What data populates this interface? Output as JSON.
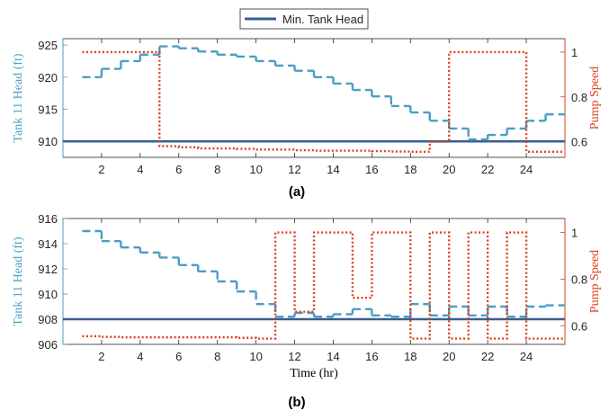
{
  "legend": {
    "label": "Min. Tank Head"
  },
  "colors": {
    "head": "#4a9ec4",
    "pump": "#d9401a",
    "min": "#3a5f8f",
    "axis": "#262626",
    "left_axis": "#4a9ec4",
    "right_axis": "#d9401a"
  },
  "shared": {
    "xlabel": "Time (hr)",
    "xlim": [
      0,
      26
    ],
    "xticks": [
      2,
      4,
      6,
      8,
      10,
      12,
      14,
      16,
      18,
      20,
      22,
      24
    ],
    "left_ylabel": "Tank 11 Head (ft)",
    "right_ylabel": "Pump Speed"
  },
  "chart_data": [
    {
      "type": "line",
      "caption": "(a)",
      "ylim": [
        907.5,
        926
      ],
      "yticks": [
        910,
        915,
        920,
        925
      ],
      "y2lim": [
        0.53,
        1.06
      ],
      "y2ticks": [
        0.6,
        0.8,
        1
      ],
      "y2ticklabels": [
        "0.6",
        "0.8",
        "1"
      ],
      "min_head": 910,
      "series": [
        {
          "name": "Tank 11 Head",
          "axis": "left",
          "style": "dashed-steps",
          "x": [
            1,
            2,
            3,
            4,
            5,
            6,
            7,
            8,
            9,
            10,
            11,
            12,
            13,
            14,
            15,
            16,
            17,
            18,
            19,
            20,
            21,
            22,
            23,
            24,
            25
          ],
          "y": [
            920.0,
            921.3,
            922.5,
            923.5,
            924.8,
            924.5,
            924.0,
            923.5,
            923.2,
            922.5,
            921.8,
            921.0,
            920.0,
            919.0,
            918.0,
            917.0,
            915.5,
            914.5,
            913.2,
            912.0,
            910.3,
            911.0,
            912.0,
            913.2,
            914.2
          ]
        },
        {
          "name": "Pump Speed",
          "axis": "right",
          "style": "dotted-steps",
          "x": [
            1,
            2,
            3,
            4,
            5,
            6,
            7,
            8,
            9,
            10,
            11,
            12,
            13,
            14,
            15,
            16,
            17,
            18,
            19,
            20,
            21,
            22,
            23,
            24,
            25
          ],
          "y": [
            1.0,
            1.0,
            1.0,
            1.0,
            0.58,
            0.575,
            0.57,
            0.57,
            0.568,
            0.565,
            0.565,
            0.562,
            0.56,
            0.56,
            0.56,
            0.558,
            0.556,
            0.555,
            0.6,
            1.0,
            1.0,
            1.0,
            1.0,
            0.555,
            0.555
          ]
        }
      ]
    },
    {
      "type": "line",
      "caption": "(b)",
      "ylim": [
        906,
        916
      ],
      "yticks": [
        906,
        908,
        910,
        912,
        914,
        916
      ],
      "y2lim": [
        0.52,
        1.06
      ],
      "y2ticks": [
        0.6,
        0.8,
        1
      ],
      "y2ticklabels": [
        "0.6",
        "0.8",
        "1"
      ],
      "min_head": 908,
      "series": [
        {
          "name": "Tank 11 Head",
          "axis": "left",
          "style": "dashed-steps",
          "x": [
            1,
            2,
            3,
            4,
            5,
            6,
            7,
            8,
            9,
            10,
            11,
            12,
            13,
            14,
            15,
            16,
            17,
            18,
            19,
            20,
            21,
            22,
            23,
            24,
            25
          ],
          "y": [
            915.0,
            914.2,
            913.7,
            913.3,
            912.9,
            912.3,
            911.8,
            911.0,
            910.2,
            909.2,
            908.2,
            908.5,
            908.2,
            908.4,
            908.8,
            908.3,
            908.2,
            909.2,
            908.3,
            909.0,
            908.3,
            909.0,
            908.2,
            909.0,
            909.1
          ]
        },
        {
          "name": "Pump Speed",
          "axis": "right",
          "style": "dotted-steps",
          "x": [
            1,
            2,
            3,
            4,
            5,
            6,
            7,
            8,
            9,
            10,
            11,
            12,
            13,
            14,
            15,
            16,
            17,
            18,
            19,
            20,
            21,
            22,
            23,
            24,
            25
          ],
          "y": [
            0.555,
            0.552,
            0.55,
            0.55,
            0.55,
            0.55,
            0.55,
            0.55,
            0.548,
            0.545,
            1.0,
            0.66,
            1.0,
            1.0,
            0.72,
            1.0,
            1.0,
            0.545,
            1.0,
            0.545,
            1.0,
            0.545,
            1.0,
            0.545,
            0.545
          ]
        }
      ]
    }
  ]
}
